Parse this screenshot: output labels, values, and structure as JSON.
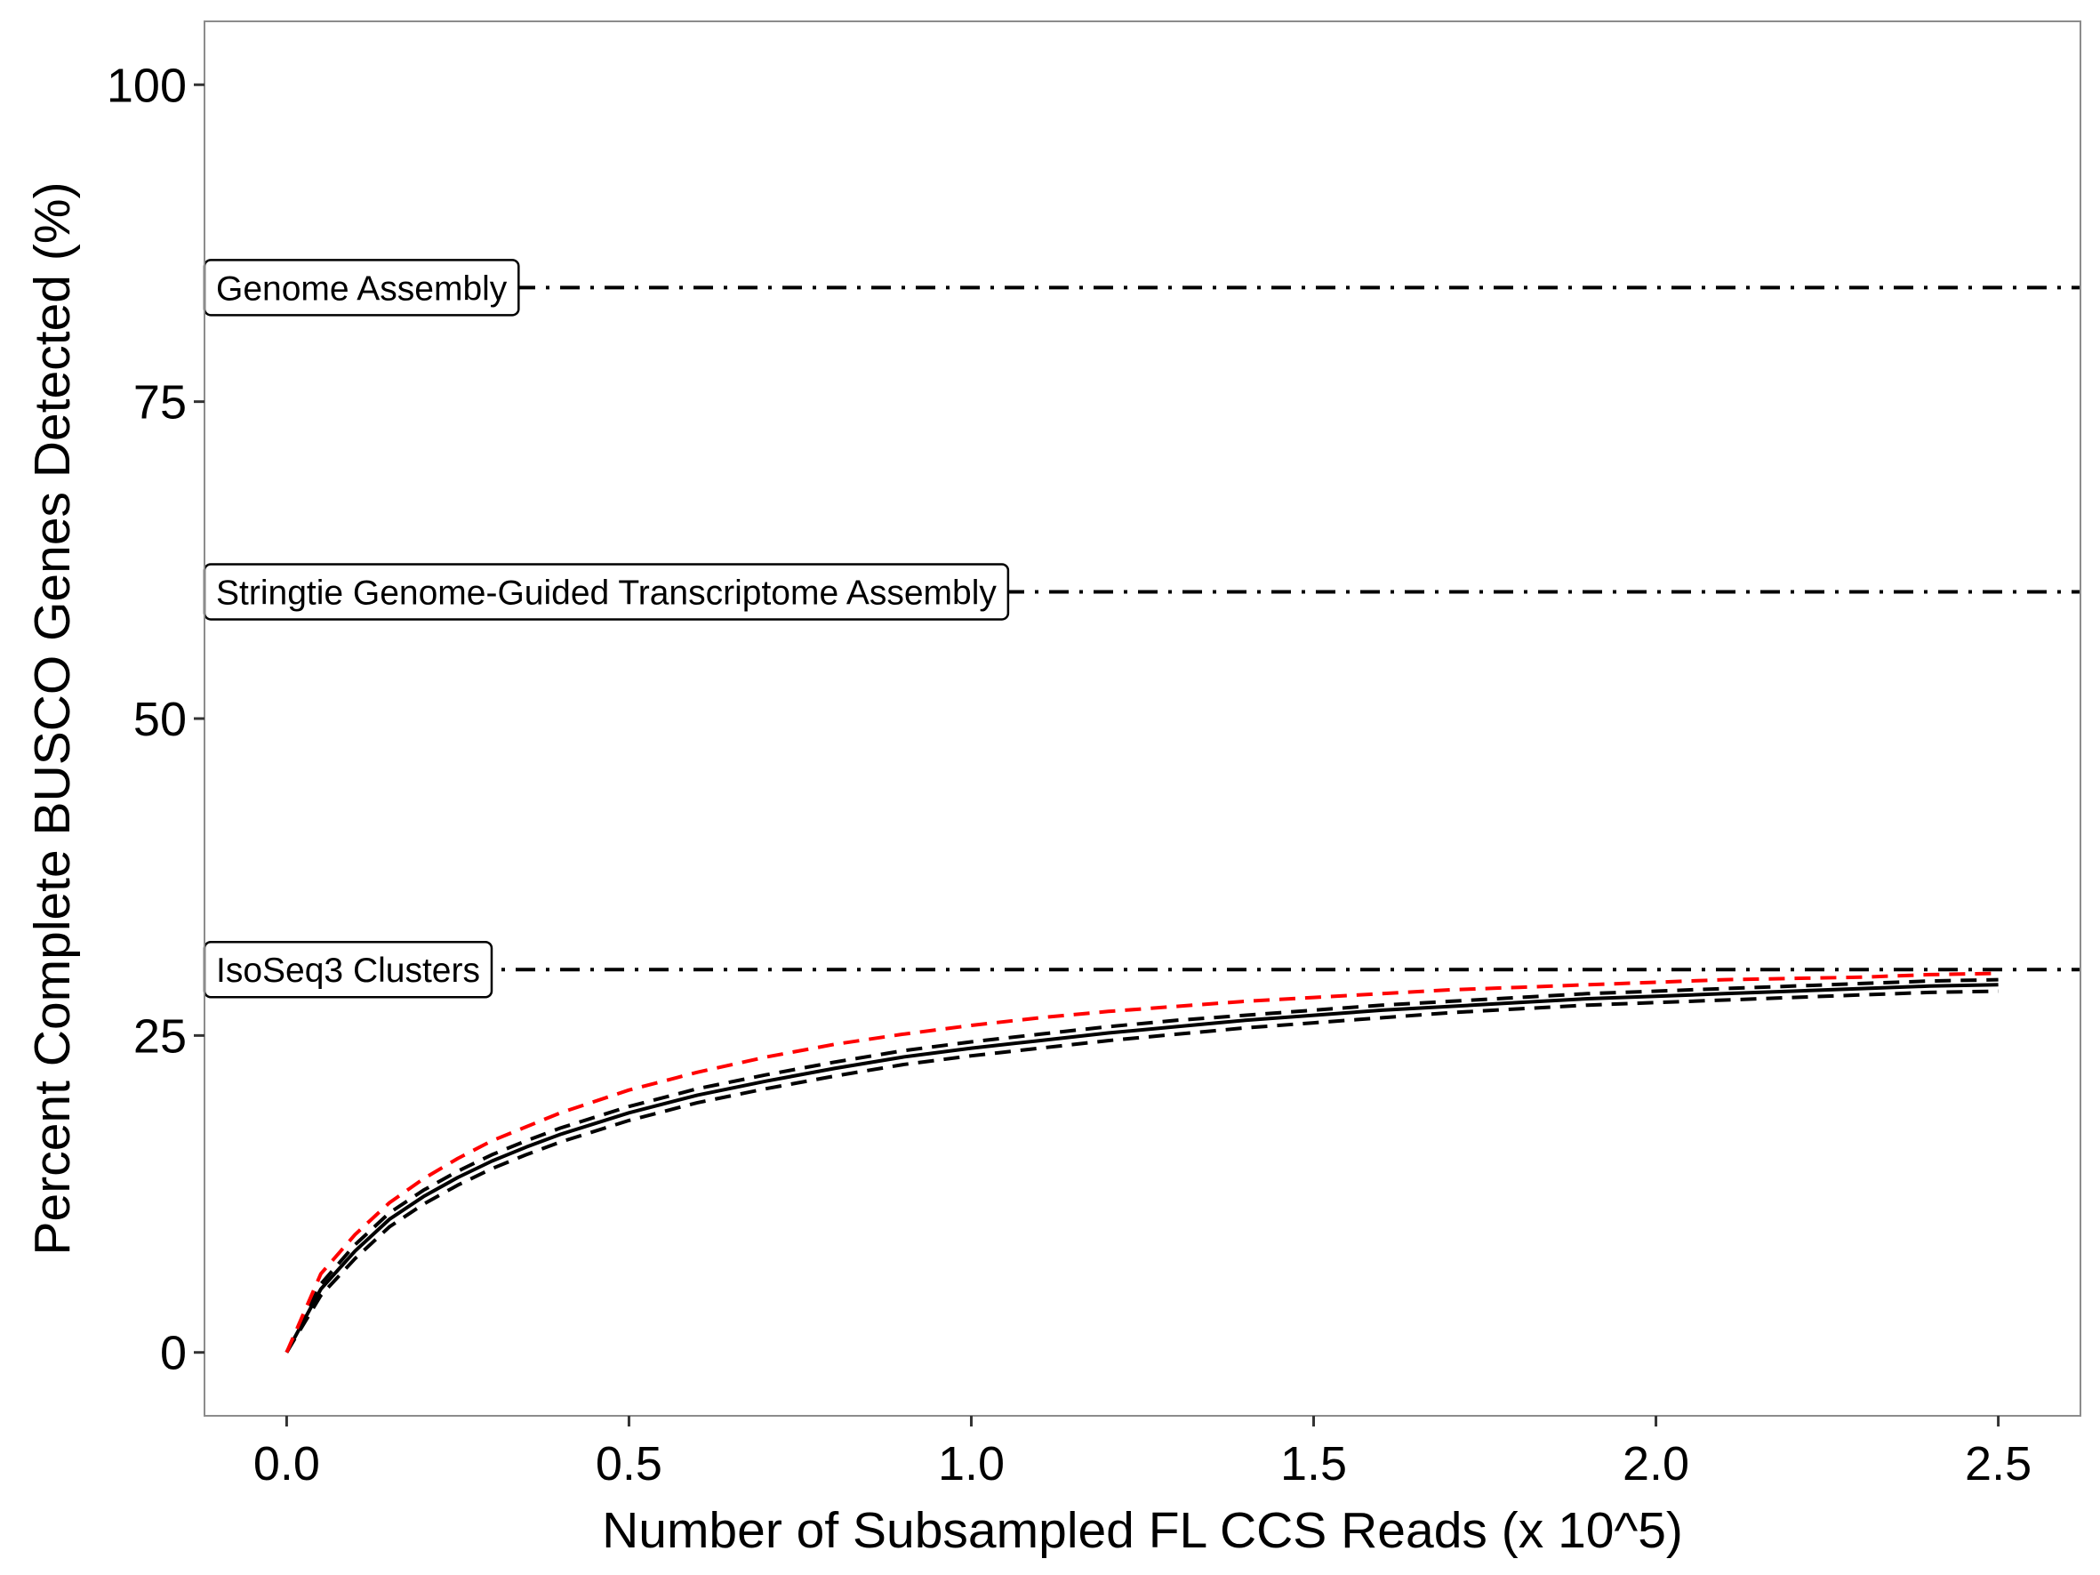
{
  "chart_data": {
    "type": "line",
    "title": "",
    "xlabel": "Number of Subsampled FL CCS Reads (x 10^5)",
    "ylabel": "Percent Complete BUSCO Genes Detected (%)",
    "xlim": [
      -0.12,
      2.62
    ],
    "ylim": [
      -5,
      105
    ],
    "x_ticks": [
      0.0,
      0.5,
      1.0,
      1.5,
      2.0,
      2.5
    ],
    "x_tick_labels": [
      "0.0",
      "0.5",
      "1.0",
      "1.5",
      "2.0",
      "2.5"
    ],
    "y_ticks": [
      0,
      25,
      50,
      75,
      100
    ],
    "y_tick_labels": [
      "0",
      "25",
      "50",
      "75",
      "100"
    ],
    "grid": false,
    "reference_lines": [
      {
        "label": "Genome Assembly",
        "y": 84,
        "style": "dotdash",
        "color": "#000000"
      },
      {
        "label": "Stringtie Genome-Guided Transcriptome Assembly",
        "y": 60,
        "style": "dotdash",
        "color": "#000000"
      },
      {
        "label": "IsoSeq3 Clusters",
        "y": 30.2,
        "style": "dotdash",
        "color": "#000000"
      }
    ],
    "series_x": [
      0,
      0.05,
      0.1,
      0.15,
      0.2,
      0.25,
      0.3,
      0.35,
      0.4,
      0.5,
      0.6,
      0.7,
      0.8,
      0.9,
      1.0,
      1.1,
      1.2,
      1.3,
      1.4,
      1.5,
      1.6,
      1.7,
      1.8,
      1.9,
      2.0,
      2.1,
      2.2,
      2.3,
      2.4,
      2.5
    ],
    "series": [
      {
        "style": "solid",
        "color": "#000000",
        "values": [
          0,
          5.0,
          8.0,
          10.5,
          12.3,
          13.8,
          15.1,
          16.2,
          17.2,
          18.9,
          20.3,
          21.4,
          22.4,
          23.3,
          24.0,
          24.6,
          25.2,
          25.7,
          26.2,
          26.6,
          27.0,
          27.3,
          27.6,
          27.9,
          28.1,
          28.3,
          28.5,
          28.7,
          28.9,
          29.0
        ]
      },
      {
        "style": "dashed",
        "color": "#000000",
        "values": [
          0,
          5.4,
          8.5,
          11.0,
          12.8,
          14.3,
          15.6,
          16.7,
          17.7,
          19.4,
          20.8,
          21.9,
          22.9,
          23.8,
          24.5,
          25.1,
          25.7,
          26.2,
          26.6,
          27.0,
          27.4,
          27.7,
          28.0,
          28.3,
          28.5,
          28.7,
          28.9,
          29.1,
          29.3,
          29.4
        ]
      },
      {
        "style": "dashed",
        "color": "#000000",
        "values": [
          0,
          4.5,
          7.4,
          9.9,
          11.7,
          13.2,
          14.5,
          15.6,
          16.6,
          18.3,
          19.7,
          20.8,
          21.8,
          22.7,
          23.4,
          24.0,
          24.6,
          25.1,
          25.6,
          26.0,
          26.4,
          26.8,
          27.1,
          27.4,
          27.6,
          27.8,
          28.0,
          28.2,
          28.4,
          28.5
        ]
      },
      {
        "style": "dashed",
        "color": "#ff0000",
        "values": [
          0,
          6.2,
          9.3,
          11.8,
          13.7,
          15.3,
          16.7,
          17.8,
          18.9,
          20.7,
          22.1,
          23.3,
          24.3,
          25.1,
          25.8,
          26.4,
          26.9,
          27.3,
          27.7,
          28.0,
          28.3,
          28.6,
          28.8,
          29.0,
          29.2,
          29.4,
          29.5,
          29.6,
          29.8,
          29.9
        ]
      }
    ]
  }
}
